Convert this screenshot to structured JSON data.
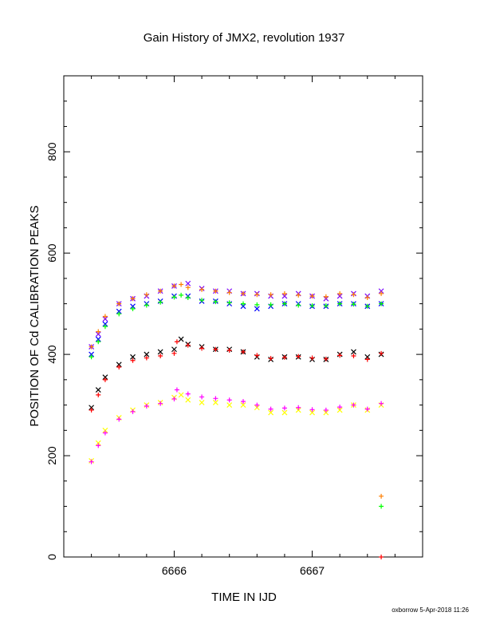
{
  "chart_data": {
    "type": "scatter",
    "title": "Gain History of JMX2, revolution 1937",
    "xlabel": "TIME IN IJD",
    "ylabel": "POSITION OF Cd CALIBRATION PEAKS",
    "xlim": [
      6665.2,
      6667.8
    ],
    "ylim": [
      0,
      950
    ],
    "x_ticks": [
      6666,
      6667
    ],
    "y_ticks": [
      0,
      200,
      400,
      600,
      800
    ],
    "grid": false,
    "legend": "none",
    "series": [
      {
        "color": "#7a00ff",
        "marker": "x",
        "x": [
          6665.4,
          6665.45,
          6665.5,
          6665.6,
          6665.7,
          6665.8,
          6665.9,
          6666.0,
          6666.1,
          6666.2,
          6666.3,
          6666.4,
          6666.5,
          6666.6,
          6666.7,
          6666.8,
          6666.9,
          6667.0,
          6667.1,
          6667.2,
          6667.3,
          6667.4,
          6667.5
        ],
        "y": [
          415,
          440,
          470,
          500,
          510,
          515,
          525,
          535,
          540,
          530,
          525,
          525,
          520,
          520,
          515,
          515,
          520,
          515,
          510,
          515,
          520,
          515,
          525
        ]
      },
      {
        "color": "#0000ff",
        "marker": "x",
        "x": [
          6665.4,
          6665.45,
          6665.5,
          6665.6,
          6665.7,
          6665.8,
          6665.9,
          6666.0,
          6666.1,
          6666.2,
          6666.3,
          6666.4,
          6666.5,
          6666.6,
          6666.7,
          6666.8,
          6666.9,
          6667.0,
          6667.1,
          6667.2,
          6667.3,
          6667.4,
          6667.5
        ],
        "y": [
          400,
          430,
          460,
          485,
          495,
          500,
          505,
          515,
          515,
          505,
          505,
          500,
          495,
          490,
          495,
          500,
          500,
          495,
          495,
          500,
          500,
          495,
          500
        ]
      },
      {
        "color": "#ff7f00",
        "marker": "+",
        "x": [
          6665.4,
          6665.45,
          6665.5,
          6665.6,
          6665.7,
          6665.8,
          6665.9,
          6666.0,
          6666.05,
          6666.1,
          6666.2,
          6666.3,
          6666.4,
          6666.5,
          6666.6,
          6666.7,
          6666.8,
          6666.9,
          6667.0,
          6667.1,
          6667.2,
          6667.3,
          6667.4,
          6667.5
        ],
        "y": [
          415,
          445,
          475,
          500,
          510,
          518,
          525,
          535,
          538,
          532,
          528,
          525,
          522,
          520,
          518,
          518,
          520,
          517,
          515,
          514,
          520,
          518,
          512,
          520
        ]
      },
      {
        "color": "#00ff00",
        "marker": "+",
        "x": [
          6665.4,
          6665.45,
          6665.5,
          6665.6,
          6665.7,
          6665.8,
          6665.9,
          6666.0,
          6666.05,
          6666.1,
          6666.2,
          6666.3,
          6666.4,
          6666.5,
          6666.6,
          6666.7,
          6666.8,
          6666.9,
          6667.0,
          6667.1,
          6667.2,
          6667.3,
          6667.4,
          6667.5
        ],
        "y": [
          395,
          425,
          455,
          480,
          490,
          497,
          503,
          513,
          517,
          512,
          507,
          504,
          502,
          500,
          498,
          498,
          500,
          497,
          496,
          496,
          500,
          499,
          495,
          500
        ]
      },
      {
        "color": "#000000",
        "marker": "x",
        "x": [
          6665.4,
          6665.45,
          6665.5,
          6665.6,
          6665.7,
          6665.8,
          6665.9,
          6666.0,
          6666.05,
          6666.1,
          6666.2,
          6666.3,
          6666.4,
          6666.5,
          6666.6,
          6666.7,
          6666.8,
          6666.9,
          6667.0,
          6667.1,
          6667.2,
          6667.3,
          6667.4,
          6667.5
        ],
        "y": [
          295,
          330,
          355,
          380,
          395,
          400,
          405,
          410,
          430,
          420,
          415,
          410,
          410,
          405,
          395,
          390,
          395,
          395,
          390,
          390,
          400,
          405,
          395,
          400
        ]
      },
      {
        "color": "#ff0000",
        "marker": "+",
        "x": [
          6665.4,
          6665.45,
          6665.5,
          6665.6,
          6665.7,
          6665.8,
          6665.9,
          6666.0,
          6666.02,
          6666.1,
          6666.2,
          6666.3,
          6666.4,
          6666.5,
          6666.6,
          6666.7,
          6666.8,
          6666.9,
          6667.0,
          6667.1,
          6667.2,
          6667.3,
          6667.4,
          6667.5
        ],
        "y": [
          290,
          320,
          350,
          375,
          388,
          393,
          397,
          402,
          425,
          418,
          412,
          410,
          408,
          405,
          398,
          392,
          394,
          396,
          393,
          391,
          398,
          397,
          390,
          402
        ]
      },
      {
        "color": "#ffff00",
        "marker": "x",
        "x": [
          6665.4,
          6665.45,
          6665.5,
          6665.6,
          6665.7,
          6665.8,
          6665.9,
          6666.0,
          6666.05,
          6666.1,
          6666.2,
          6666.3,
          6666.4,
          6666.5,
          6666.6,
          6666.7,
          6666.8,
          6666.9,
          6667.0,
          6667.1,
          6667.2,
          6667.3,
          6667.4,
          6667.5
        ],
        "y": [
          190,
          225,
          250,
          275,
          290,
          300,
          305,
          315,
          320,
          310,
          305,
          305,
          300,
          300,
          295,
          285,
          285,
          290,
          285,
          285,
          290,
          300,
          290,
          300
        ]
      },
      {
        "color": "#ff00ff",
        "marker": "+",
        "x": [
          6665.4,
          6665.45,
          6665.5,
          6665.6,
          6665.7,
          6665.8,
          6665.9,
          6666.0,
          6666.02,
          6666.1,
          6666.2,
          6666.3,
          6666.4,
          6666.5,
          6666.6,
          6666.7,
          6666.8,
          6666.9,
          6667.0,
          6667.1,
          6667.2,
          6667.3,
          6667.4,
          6667.5
        ],
        "y": [
          188,
          220,
          245,
          272,
          287,
          298,
          303,
          312,
          330,
          322,
          316,
          313,
          310,
          307,
          300,
          292,
          294,
          295,
          291,
          290,
          296,
          300,
          292,
          303
        ]
      },
      {
        "color": "#ff7f00",
        "marker": "+",
        "x": [
          6667.5
        ],
        "y": [
          120
        ]
      },
      {
        "color": "#00ff00",
        "marker": "+",
        "x": [
          6667.5
        ],
        "y": [
          100
        ]
      },
      {
        "color": "#ff0000",
        "marker": "+",
        "x": [
          6667.5
        ],
        "y": [
          0
        ]
      }
    ]
  },
  "footer": "oxborrow  5-Apr-2018 11:26"
}
